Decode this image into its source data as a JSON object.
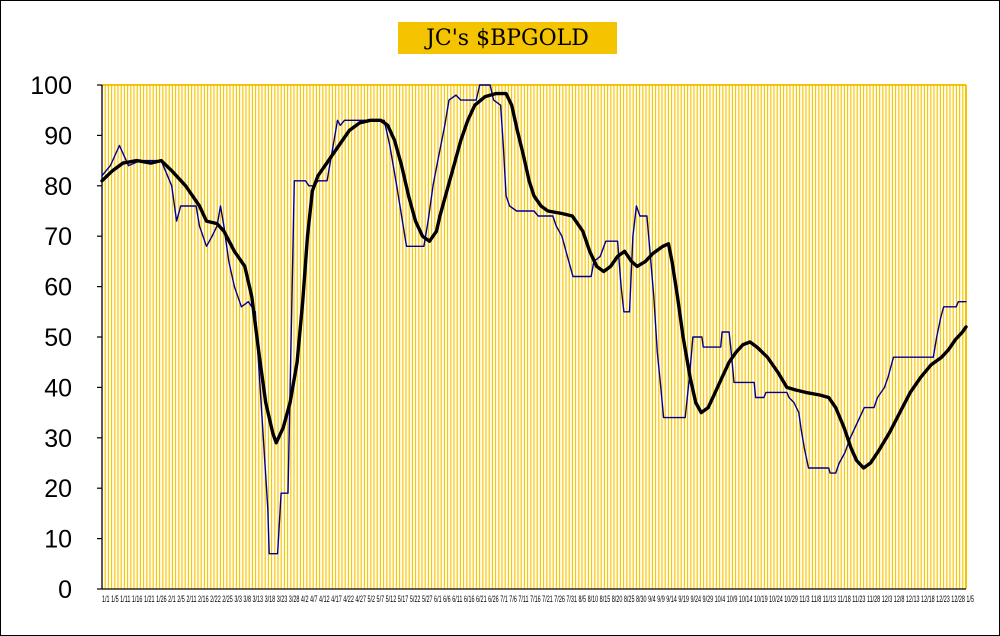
{
  "chart_data": {
    "type": "line",
    "title": "JC's $BPGOLD",
    "ylim": [
      0,
      100
    ],
    "yticks": [
      0,
      10,
      20,
      30,
      40,
      50,
      60,
      70,
      80,
      90,
      100
    ],
    "xtick_text": "1/1 1/5 1/11 1/16 1/21 1/26 2/1 2/5 2/11 2/16 2/22 2/25 3/3 3/8 3/13 3/18 3/23 3/28 4/2 4/7 4/12 4/17 4/22 4/27 5/2 5/7 5/12 5/17 5/22 5/27 6/1 6/6 6/11 6/16 6/21 6/26 7/1 7/6 7/11 7/16 7/21 7/26 7/31 8/5 8/10 8/15 8/20 8/25 8/30 9/4 9/9 9/14 9/19 9/24 9/29 10/4 10/9 10/14 10/19 10/24 10/29 11/3 11/8 11/13 11/18 11/23 11/28 12/3 12/8 12/13 12/18 12/23 12/28 1/5",
    "grid": "vertical",
    "plot_background": "#fffcf0",
    "gridline_color": "#f5c400",
    "series": [
      {
        "color": "#00008b",
        "style": "thin-step",
        "points": [
          [
            0,
            82
          ],
          [
            1.2,
            84
          ],
          [
            2.5,
            88
          ],
          [
            3.8,
            84
          ],
          [
            5.5,
            85
          ],
          [
            8.5,
            85
          ],
          [
            10,
            80
          ],
          [
            10.7,
            73
          ],
          [
            11.3,
            76
          ],
          [
            13.5,
            76
          ],
          [
            14,
            72
          ],
          [
            15,
            68
          ],
          [
            15.8,
            70
          ],
          [
            16.5,
            72
          ],
          [
            17,
            76
          ],
          [
            17.5,
            72
          ],
          [
            18.2,
            65
          ],
          [
            19,
            60
          ],
          [
            20,
            56
          ],
          [
            21,
            57
          ],
          [
            22,
            55
          ],
          [
            23.8,
            16
          ],
          [
            24,
            7
          ],
          [
            25.2,
            7
          ],
          [
            25.7,
            19
          ],
          [
            26.7,
            19
          ],
          [
            27.6,
            81
          ],
          [
            29.2,
            81
          ],
          [
            29.7,
            80
          ],
          [
            30.5,
            80
          ],
          [
            31,
            81
          ],
          [
            32.3,
            81
          ],
          [
            33.8,
            93
          ],
          [
            34.2,
            92
          ],
          [
            34.8,
            93
          ],
          [
            40.5,
            93
          ],
          [
            41.3,
            88
          ],
          [
            42.3,
            80
          ],
          [
            43,
            74
          ],
          [
            43.7,
            68
          ],
          [
            46.2,
            68
          ],
          [
            46.8,
            73
          ],
          [
            47.5,
            80
          ],
          [
            48.2,
            85
          ],
          [
            49.2,
            92
          ],
          [
            49.8,
            97
          ],
          [
            50.8,
            98
          ],
          [
            51.5,
            97
          ],
          [
            53.7,
            97
          ],
          [
            54.2,
            100
          ],
          [
            55.7,
            100
          ],
          [
            56.2,
            97
          ],
          [
            57.2,
            96
          ],
          [
            57.6,
            88
          ],
          [
            58,
            78
          ],
          [
            58.5,
            76
          ],
          [
            59.5,
            75
          ],
          [
            62,
            75
          ],
          [
            62.6,
            74
          ],
          [
            64.7,
            74
          ],
          [
            65.2,
            72
          ],
          [
            66,
            70
          ],
          [
            66.8,
            66
          ],
          [
            67.6,
            62
          ],
          [
            70.2,
            62
          ],
          [
            70.6,
            65
          ],
          [
            71.5,
            66
          ],
          [
            72.3,
            69
          ],
          [
            74,
            69
          ],
          [
            74.5,
            60
          ],
          [
            74.9,
            55
          ],
          [
            75.7,
            55
          ],
          [
            76.2,
            70
          ],
          [
            76.7,
            76
          ],
          [
            77.2,
            74
          ],
          [
            78.2,
            74
          ],
          [
            78.7,
            66
          ],
          [
            79.2,
            58
          ],
          [
            79.7,
            47
          ],
          [
            80.2,
            40
          ],
          [
            80.6,
            34
          ],
          [
            83.7,
            34
          ],
          [
            84.3,
            42
          ],
          [
            84.8,
            50
          ],
          [
            86.1,
            50
          ],
          [
            86.3,
            48
          ],
          [
            88.8,
            48
          ],
          [
            89,
            51
          ],
          [
            90,
            51
          ],
          [
            90.3,
            47
          ],
          [
            90.7,
            41
          ],
          [
            93.6,
            41
          ],
          [
            93.8,
            38
          ],
          [
            95,
            38
          ],
          [
            95.3,
            39
          ],
          [
            98.3,
            39
          ],
          [
            98.6,
            38
          ],
          [
            99.3,
            37
          ],
          [
            100,
            35
          ],
          [
            100.3,
            32
          ],
          [
            100.8,
            28
          ],
          [
            101.4,
            24
          ],
          [
            104.3,
            24
          ],
          [
            104.5,
            23
          ],
          [
            105.3,
            23
          ],
          [
            105.8,
            25
          ],
          [
            106.6,
            27
          ],
          [
            107.4,
            30
          ],
          [
            108.4,
            33
          ],
          [
            109.4,
            36
          ],
          [
            110.8,
            36
          ],
          [
            111.3,
            38
          ],
          [
            112.3,
            40
          ],
          [
            112.8,
            42
          ],
          [
            113.6,
            46
          ],
          [
            119.3,
            46
          ],
          [
            119.8,
            50
          ],
          [
            120.4,
            54
          ],
          [
            120.8,
            56
          ],
          [
            122.6,
            56
          ],
          [
            122.9,
            57
          ],
          [
            124,
            57
          ]
        ]
      },
      {
        "color": "#000000",
        "style": "thick-smooth",
        "points": [
          [
            0,
            81
          ],
          [
            1.5,
            83
          ],
          [
            3,
            84.5
          ],
          [
            5,
            85
          ],
          [
            7,
            84.5
          ],
          [
            8.5,
            85
          ],
          [
            10,
            83
          ],
          [
            12,
            80
          ],
          [
            14,
            76
          ],
          [
            15,
            73
          ],
          [
            16.5,
            72.5
          ],
          [
            17.5,
            71
          ],
          [
            19,
            67
          ],
          [
            20.5,
            64
          ],
          [
            21.5,
            58
          ],
          [
            22.5,
            47
          ],
          [
            23.5,
            37
          ],
          [
            24.5,
            31
          ],
          [
            25,
            29
          ],
          [
            26,
            32
          ],
          [
            27,
            37
          ],
          [
            28,
            45
          ],
          [
            28.8,
            57
          ],
          [
            29.5,
            70
          ],
          [
            30.2,
            79
          ],
          [
            31,
            82
          ],
          [
            32.5,
            85
          ],
          [
            34,
            88
          ],
          [
            35.5,
            91
          ],
          [
            37,
            92.5
          ],
          [
            38.5,
            93
          ],
          [
            40,
            93
          ],
          [
            41,
            92
          ],
          [
            42,
            89
          ],
          [
            43,
            84
          ],
          [
            44,
            78
          ],
          [
            45,
            73
          ],
          [
            46,
            70
          ],
          [
            47,
            69
          ],
          [
            48,
            71
          ],
          [
            48.5,
            74
          ],
          [
            49.5,
            79
          ],
          [
            50.5,
            84
          ],
          [
            51.5,
            89
          ],
          [
            52.5,
            93
          ],
          [
            53.5,
            96
          ],
          [
            55,
            97.7
          ],
          [
            56.5,
            98.3
          ],
          [
            58,
            98.3
          ],
          [
            58.8,
            96
          ],
          [
            59.6,
            91
          ],
          [
            60.5,
            86
          ],
          [
            61.3,
            81
          ],
          [
            62,
            78
          ],
          [
            63,
            76
          ],
          [
            64,
            75
          ],
          [
            66,
            74.5
          ],
          [
            67.5,
            74
          ],
          [
            69,
            71
          ],
          [
            70,
            67
          ],
          [
            71,
            64
          ],
          [
            72,
            63
          ],
          [
            73,
            64
          ],
          [
            74,
            66
          ],
          [
            75,
            67
          ],
          [
            76,
            65
          ],
          [
            76.8,
            64
          ],
          [
            78,
            65
          ],
          [
            79,
            66.5
          ],
          [
            80.5,
            68
          ],
          [
            81.3,
            68.5
          ],
          [
            81.8,
            65
          ],
          [
            82.6,
            58
          ],
          [
            83.4,
            50
          ],
          [
            84.4,
            42
          ],
          [
            85.2,
            37
          ],
          [
            86,
            35
          ],
          [
            87,
            36
          ],
          [
            88,
            39
          ],
          [
            89,
            42
          ],
          [
            90,
            45
          ],
          [
            91,
            47
          ],
          [
            92,
            48.5
          ],
          [
            93,
            49
          ],
          [
            94,
            48
          ],
          [
            95.5,
            46
          ],
          [
            97,
            43
          ],
          [
            98.3,
            40
          ],
          [
            99.5,
            39.5
          ],
          [
            101,
            39
          ],
          [
            103,
            38.5
          ],
          [
            104.3,
            38
          ],
          [
            105.3,
            36
          ],
          [
            106.5,
            32
          ],
          [
            107.5,
            28
          ],
          [
            108.3,
            25.5
          ],
          [
            109.3,
            24
          ],
          [
            110.3,
            25
          ],
          [
            111.5,
            27.5
          ],
          [
            113,
            31
          ],
          [
            114.5,
            35
          ],
          [
            116,
            39
          ],
          [
            117.5,
            42
          ],
          [
            119,
            44.5
          ],
          [
            120.5,
            46
          ],
          [
            121.5,
            47.5
          ],
          [
            122.5,
            49.5
          ],
          [
            123.5,
            51
          ],
          [
            124,
            52
          ]
        ]
      }
    ]
  }
}
